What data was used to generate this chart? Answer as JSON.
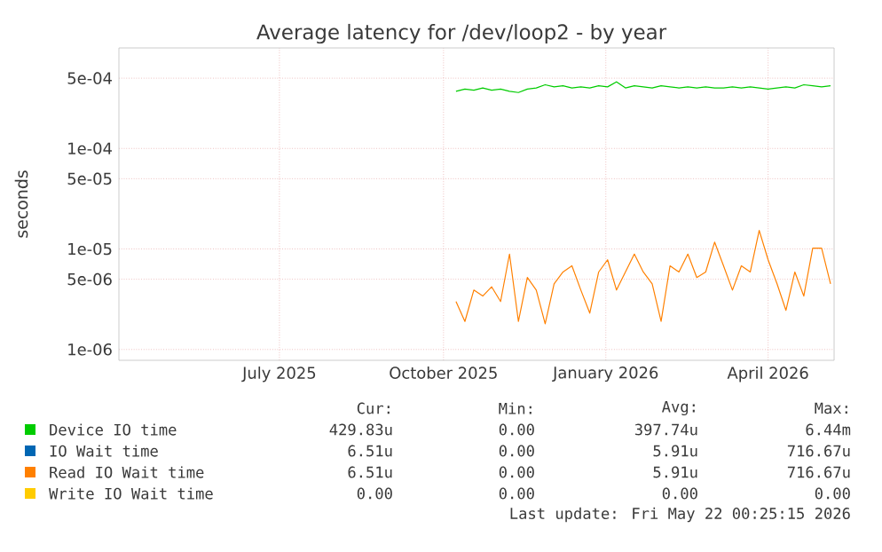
{
  "chart_data": {
    "type": "line",
    "title": "Average latency for /dev/loop2 - by year",
    "ylabel": "seconds",
    "log": "y",
    "grid": true,
    "legend": "bottom",
    "marker": "none",
    "line_style": "solid",
    "xlim": [
      "2025-04-16",
      "2026-05-22"
    ],
    "ylim": [
      7.8e-07,
      0.001
    ],
    "xticks": [
      {
        "value": "2025-07-15",
        "label": "July 2025"
      },
      {
        "value": "2025-10-15",
        "label": "October 2025"
      },
      {
        "value": "2026-01-14",
        "label": "January 2026"
      },
      {
        "value": "2026-04-15",
        "label": "April 2026"
      }
    ],
    "yticks": [
      {
        "value": 1e-06,
        "label": "1e-06"
      },
      {
        "value": 5e-06,
        "label": "5e-06"
      },
      {
        "value": 1e-05,
        "label": "1e-05"
      },
      {
        "value": 5e-05,
        "label": "5e-05"
      },
      {
        "value": 0.0001,
        "label": "1e-04"
      },
      {
        "value": 0.0005,
        "label": "5e-04"
      }
    ],
    "x": [
      "2025-10-22",
      "2025-10-27",
      "2025-11-01",
      "2025-11-06",
      "2025-11-11",
      "2025-11-16",
      "2025-11-21",
      "2025-11-26",
      "2025-12-01",
      "2025-12-06",
      "2025-12-11",
      "2025-12-16",
      "2025-12-21",
      "2025-12-26",
      "2025-12-31",
      "2026-01-05",
      "2026-01-10",
      "2026-01-15",
      "2026-01-20",
      "2026-01-25",
      "2026-01-30",
      "2026-02-04",
      "2026-02-09",
      "2026-02-14",
      "2026-02-19",
      "2026-02-24",
      "2026-03-01",
      "2026-03-06",
      "2026-03-11",
      "2026-03-16",
      "2026-03-21",
      "2026-03-26",
      "2026-03-31",
      "2026-04-05",
      "2026-04-10",
      "2026-04-15",
      "2026-04-20",
      "2026-04-25",
      "2026-04-30",
      "2026-05-05",
      "2026-05-10",
      "2026-05-15",
      "2026-05-20"
    ],
    "series": [
      {
        "name": "Device IO time",
        "color": "#00cc00",
        "values": [
          0.00037,
          0.00039,
          0.00038,
          0.0004,
          0.00038,
          0.00039,
          0.00037,
          0.00036,
          0.00039,
          0.0004,
          0.00043,
          0.00041,
          0.00042,
          0.0004,
          0.00041,
          0.0004,
          0.00042,
          0.00041,
          0.00046,
          0.0004,
          0.00042,
          0.00041,
          0.0004,
          0.00042,
          0.00041,
          0.0004,
          0.00041,
          0.0004,
          0.00041,
          0.0004,
          0.0004,
          0.00041,
          0.0004,
          0.00041,
          0.0004,
          0.00039,
          0.0004,
          0.00041,
          0.0004,
          0.00043,
          0.00042,
          0.00041,
          0.00042
        ]
      },
      {
        "name": "IO Wait time",
        "color": "#0066b3",
        "values": [
          null,
          null,
          null,
          null,
          null,
          null,
          null,
          null,
          null,
          null,
          null,
          null,
          null,
          null,
          null,
          null,
          null,
          null,
          null,
          null,
          null,
          null,
          null,
          null,
          null,
          null,
          null,
          null,
          null,
          null,
          null,
          null,
          null,
          null,
          null,
          null,
          null,
          null,
          null,
          null,
          null,
          null,
          null
        ]
      },
      {
        "name": "Read IO Wait time",
        "color": "#ff8000",
        "values": [
          3e-06,
          1.9e-06,
          3.9e-06,
          3.4e-06,
          4.2e-06,
          3e-06,
          8.9e-06,
          1.9e-06,
          5.2e-06,
          3.9e-06,
          1.8e-06,
          4.5e-06,
          5.9e-06,
          6.8e-06,
          3.9e-06,
          2.3e-06,
          5.9e-06,
          7.8e-06,
          3.9e-06,
          5.9e-06,
          8.9e-06,
          5.9e-06,
          4.5e-06,
          1.9e-06,
          6.8e-06,
          5.9e-06,
          8.9e-06,
          5.2e-06,
          5.9e-06,
          1.17e-05,
          6.8e-06,
          3.9e-06,
          6.8e-06,
          5.9e-06,
          1.53e-05,
          7.8e-06,
          4.5e-06,
          2.45e-06,
          5.9e-06,
          3.4e-06,
          1.02e-05,
          1.02e-05,
          4.5e-06
        ]
      },
      {
        "name": "Write IO Wait time",
        "color": "#ffcc00",
        "values": [
          null,
          null,
          null,
          null,
          null,
          null,
          null,
          null,
          null,
          null,
          null,
          null,
          null,
          null,
          null,
          null,
          null,
          null,
          null,
          null,
          null,
          null,
          null,
          null,
          null,
          null,
          null,
          null,
          null,
          null,
          null,
          null,
          null,
          null,
          null,
          null,
          null,
          null,
          null,
          null,
          null,
          null,
          null
        ]
      }
    ],
    "annotations": [
      "Cur:",
      "Min:",
      "Avg:",
      "Max:",
      "429.83u",
      "0.00",
      "397.74u",
      "6.44m",
      "6.51u",
      "0.00",
      "5.91u",
      "716.67u",
      "6.51u",
      "0.00",
      "5.91u",
      "716.67u",
      "0.00",
      "0.00",
      "0.00",
      "0.00",
      "Last update: Fri May 22 00:25:15 2026"
    ]
  }
}
